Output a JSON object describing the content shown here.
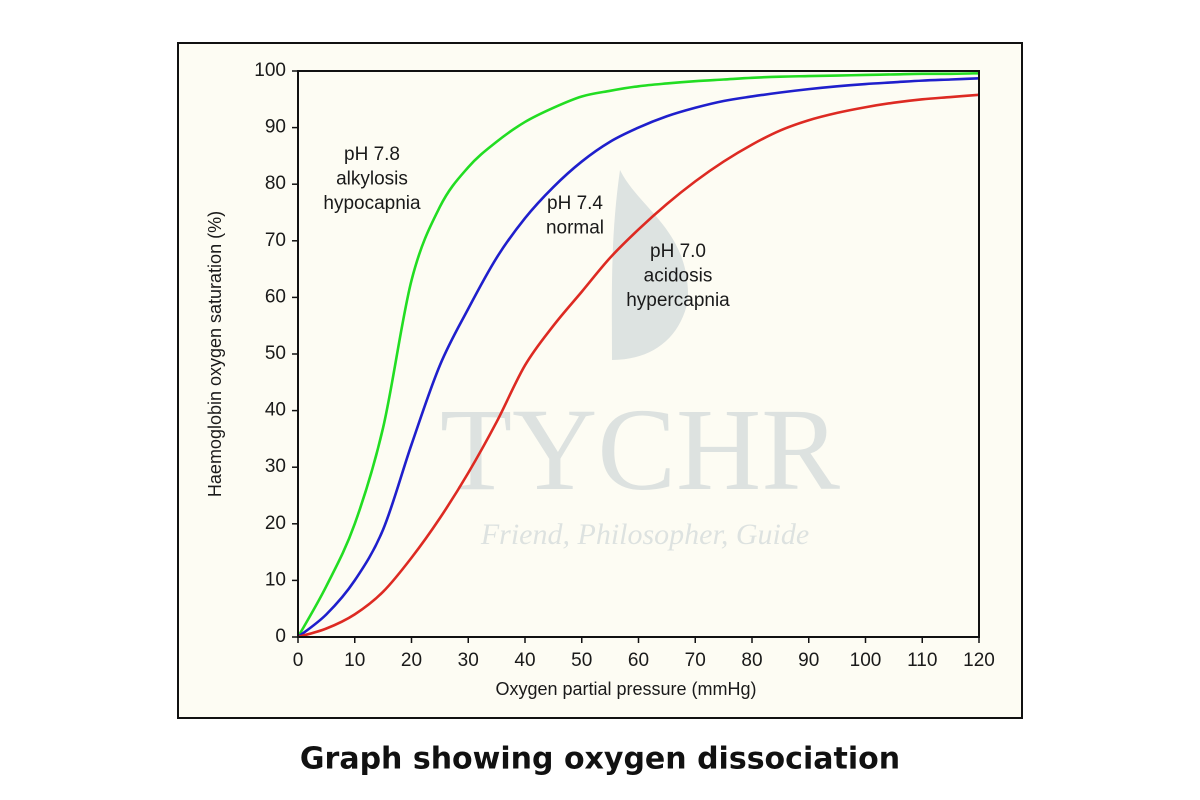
{
  "chart_data": {
    "type": "line",
    "caption": "Graph showing oxygen dissociation",
    "x_label": "Oxygen partial pressure (mmHg)",
    "y_label": "Haemoglobin oxygen saturation (%)",
    "x": [
      0,
      5,
      10,
      15,
      20,
      25,
      30,
      35,
      40,
      45,
      50,
      55,
      60,
      65,
      70,
      75,
      80,
      85,
      90,
      95,
      100,
      105,
      110,
      115,
      120
    ],
    "series": [
      {
        "name": "pH 7.8",
        "color": "#22dd22",
        "values": [
          0,
          9,
          20,
          37,
          63,
          76,
          83,
          87.5,
          91,
          93.5,
          95.5,
          96.5,
          97.3,
          97.8,
          98.2,
          98.5,
          98.8,
          99,
          99.1,
          99.2,
          99.3,
          99.4,
          99.5,
          99.5,
          99.6
        ]
      },
      {
        "name": "pH 7.4",
        "color": "#1f1fcc",
        "values": [
          0,
          4,
          10,
          19,
          34,
          48,
          58,
          67,
          74,
          79.5,
          84,
          87.5,
          90,
          92,
          93.5,
          94.7,
          95.5,
          96.2,
          96.8,
          97.3,
          97.7,
          98,
          98.3,
          98.5,
          98.7
        ]
      },
      {
        "name": "pH 7.0",
        "color": "#dd2a22",
        "values": [
          0,
          1.5,
          4,
          8,
          14,
          21,
          29,
          38,
          48,
          55,
          61,
          67,
          72,
          76.5,
          80.5,
          84,
          87,
          89.5,
          91.3,
          92.6,
          93.6,
          94.4,
          95,
          95.4,
          95.8
        ]
      }
    ],
    "annotations": [
      {
        "lines": [
          "pH 7.8",
          "alkylosis",
          "hypocapnia"
        ]
      },
      {
        "lines": [
          "pH 7.4",
          "normal"
        ]
      },
      {
        "lines": [
          "pH 7.0",
          "acidosis",
          "hypercapnia"
        ]
      }
    ],
    "xlim": [
      0,
      120
    ],
    "ylim": [
      0,
      100
    ],
    "xticks": [
      0,
      10,
      20,
      30,
      40,
      50,
      60,
      70,
      80,
      90,
      100,
      110,
      120
    ],
    "yticks": [
      0,
      10,
      20,
      30,
      40,
      50,
      60,
      70,
      80,
      90,
      100
    ],
    "grid": false,
    "watermark": {
      "text": "TYCHR",
      "tagline": "Friend, Philosopher, Guide"
    }
  }
}
